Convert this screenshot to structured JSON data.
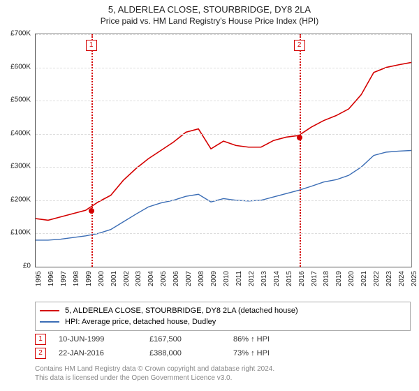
{
  "title": {
    "line1": "5, ALDERLEA CLOSE, STOURBRIDGE, DY8 2LA",
    "line2": "Price paid vs. HM Land Registry's House Price Index (HPI)"
  },
  "chart": {
    "type": "line",
    "background_color": "#ffffff",
    "grid_color": "#dddddd",
    "axis_color": "#555555",
    "y_axis": {
      "min": 0,
      "max": 700000,
      "step": 100000,
      "tick_labels": [
        "£0",
        "£100K",
        "£200K",
        "£300K",
        "£400K",
        "£500K",
        "£600K",
        "£700K"
      ],
      "label_fontsize": 10
    },
    "x_axis": {
      "min": 1995,
      "max": 2025,
      "tick_labels": [
        "1995",
        "1996",
        "1997",
        "1998",
        "1999",
        "2000",
        "2001",
        "2002",
        "2003",
        "2004",
        "2005",
        "2006",
        "2007",
        "2008",
        "2009",
        "2010",
        "2011",
        "2012",
        "2013",
        "2014",
        "2015",
        "2016",
        "2017",
        "2018",
        "2019",
        "2020",
        "2021",
        "2022",
        "2023",
        "2024",
        "2025"
      ],
      "label_fontsize": 10
    },
    "series": [
      {
        "name": "5, ALDERLEA CLOSE, STOURBRIDGE, DY8 2LA (detached house)",
        "color": "#d40000",
        "line_width": 1.6,
        "data": [
          [
            1995,
            145000
          ],
          [
            1996,
            140000
          ],
          [
            1997,
            150000
          ],
          [
            1998,
            160000
          ],
          [
            1999,
            170000
          ],
          [
            2000,
            195000
          ],
          [
            2001,
            215000
          ],
          [
            2002,
            260000
          ],
          [
            2003,
            295000
          ],
          [
            2004,
            325000
          ],
          [
            2005,
            350000
          ],
          [
            2006,
            375000
          ],
          [
            2007,
            405000
          ],
          [
            2008,
            415000
          ],
          [
            2009,
            355000
          ],
          [
            2010,
            378000
          ],
          [
            2011,
            365000
          ],
          [
            2012,
            360000
          ],
          [
            2013,
            360000
          ],
          [
            2014,
            380000
          ],
          [
            2015,
            390000
          ],
          [
            2016,
            395000
          ],
          [
            2017,
            420000
          ],
          [
            2018,
            440000
          ],
          [
            2019,
            455000
          ],
          [
            2020,
            475000
          ],
          [
            2021,
            518000
          ],
          [
            2022,
            585000
          ],
          [
            2023,
            600000
          ],
          [
            2024,
            608000
          ],
          [
            2025,
            615000
          ]
        ]
      },
      {
        "name": "HPI: Average price, detached house, Dudley",
        "color": "#3b6db5",
        "line_width": 1.4,
        "data": [
          [
            1995,
            80000
          ],
          [
            1996,
            80000
          ],
          [
            1997,
            83000
          ],
          [
            1998,
            88000
          ],
          [
            1999,
            93000
          ],
          [
            2000,
            100000
          ],
          [
            2001,
            112000
          ],
          [
            2002,
            135000
          ],
          [
            2003,
            158000
          ],
          [
            2004,
            180000
          ],
          [
            2005,
            192000
          ],
          [
            2006,
            200000
          ],
          [
            2007,
            212000
          ],
          [
            2008,
            218000
          ],
          [
            2009,
            195000
          ],
          [
            2010,
            205000
          ],
          [
            2011,
            200000
          ],
          [
            2012,
            198000
          ],
          [
            2013,
            200000
          ],
          [
            2014,
            210000
          ],
          [
            2015,
            220000
          ],
          [
            2016,
            230000
          ],
          [
            2017,
            242000
          ],
          [
            2018,
            255000
          ],
          [
            2019,
            262000
          ],
          [
            2020,
            275000
          ],
          [
            2021,
            300000
          ],
          [
            2022,
            335000
          ],
          [
            2023,
            345000
          ],
          [
            2024,
            348000
          ],
          [
            2025,
            350000
          ]
        ]
      }
    ],
    "event_lines": [
      {
        "idx": "1",
        "x": 1999.44,
        "color": "#d40000"
      },
      {
        "idx": "2",
        "x": 2016.06,
        "color": "#d40000"
      }
    ],
    "sale_points": [
      {
        "x": 1999.44,
        "y": 167500,
        "color": "#d40000"
      },
      {
        "x": 2016.06,
        "y": 388000,
        "color": "#d40000"
      }
    ]
  },
  "legend": {
    "items": [
      {
        "color": "#d40000",
        "label": "5, ALDERLEA CLOSE, STOURBRIDGE, DY8 2LA (detached house)"
      },
      {
        "color": "#3b6db5",
        "label": "HPI: Average price, detached house, Dudley"
      }
    ]
  },
  "sales": [
    {
      "idx": "1",
      "color": "#d40000",
      "date": "10-JUN-1999",
      "price": "£167,500",
      "hpi": "86% ↑ HPI"
    },
    {
      "idx": "2",
      "color": "#d40000",
      "date": "22-JAN-2016",
      "price": "£388,000",
      "hpi": "73% ↑ HPI"
    }
  ],
  "footer": {
    "line1": "Contains HM Land Registry data © Crown copyright and database right 2024.",
    "line2": "This data is licensed under the Open Government Licence v3.0."
  }
}
